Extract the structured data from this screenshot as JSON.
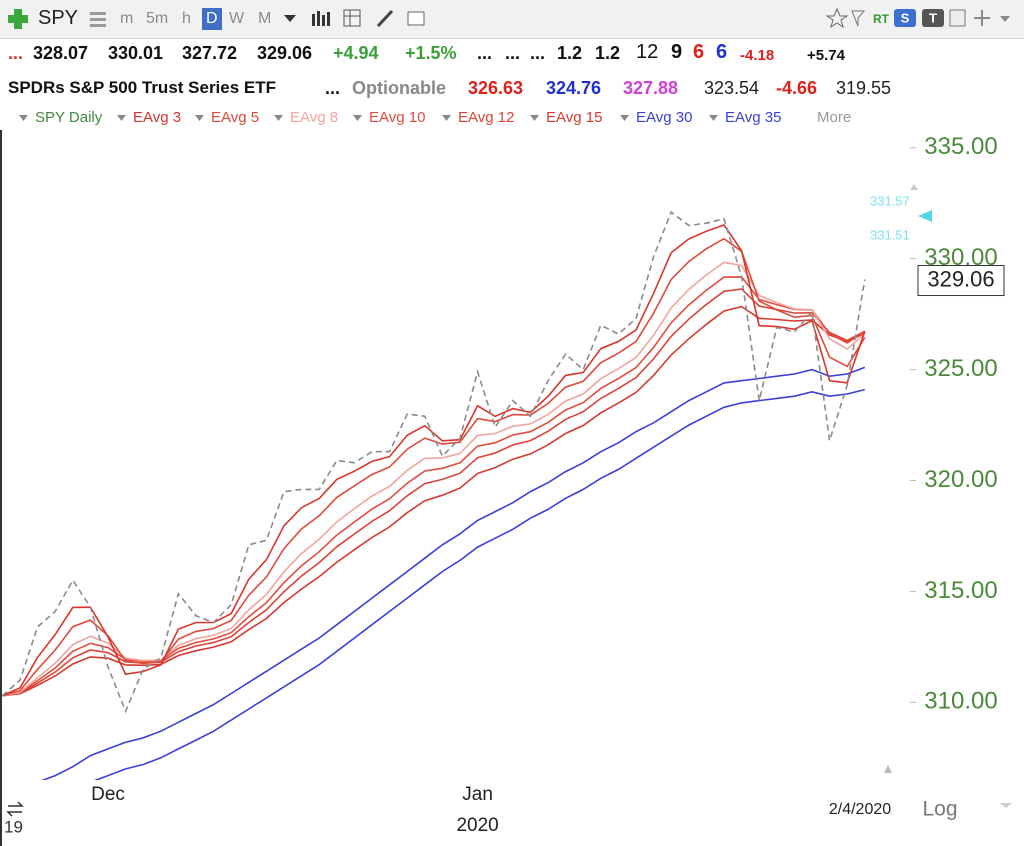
{
  "toolbar": {
    "symbol": "SPY",
    "intervals": [
      "m",
      "5m",
      "h",
      "D",
      "W",
      "M"
    ],
    "realtime": "RT"
  },
  "quote": {
    "row1": [
      "...",
      "328.07",
      "330.01",
      "327.72",
      "329.06",
      "+4.94",
      "+1.5%",
      "...",
      "...",
      "...",
      "1.2",
      "1.2",
      "12",
      "9",
      "6",
      "6",
      "-4.18",
      "+5.74"
    ],
    "row2": [
      "SPDRs S&P 500 Trust Series ETF",
      "...",
      "Optionable",
      "326.63",
      "324.76",
      "327.88",
      "323.54",
      "-4.66",
      "319.55"
    ]
  },
  "chart_data": {
    "type": "line",
    "categories": [
      null,
      null,
      null,
      null,
      null,
      null,
      "Dec",
      null,
      null,
      null,
      null,
      null,
      null,
      null,
      null,
      null,
      null,
      null,
      null,
      null,
      null,
      null,
      null,
      null,
      null,
      null,
      null,
      "Jan",
      null,
      null,
      null,
      null,
      null,
      null,
      null,
      null,
      null,
      null,
      null,
      null,
      null,
      null,
      null,
      null,
      null,
      null,
      null,
      null,
      null,
      null
    ],
    "year_label": "2020",
    "prev_year_label": "19",
    "date_label": "2/4/2020",
    "scale_label": "Log",
    "more_label": "More",
    "annotations": [
      "331.57",
      "331.51"
    ],
    "ylim": [
      306.5,
      335.8
    ],
    "yticks": [
      {
        "value": 310,
        "label": "310.00"
      },
      {
        "value": 315,
        "label": "315.00"
      },
      {
        "value": 320,
        "label": "320.00"
      },
      {
        "value": 325,
        "label": "325.00"
      },
      {
        "value": 330,
        "label": "330.00"
      },
      {
        "value": 335,
        "label": "335.00"
      }
    ],
    "log_scale": false,
    "grid": false,
    "series": [
      {
        "name": "SPY Daily",
        "color": "#8a8a8a",
        "dashed": true,
        "values": [
          310.3,
          311.0,
          313.4,
          314.1,
          315.5,
          314.3,
          311.6,
          309.6,
          311.5,
          312.0,
          314.9,
          313.9,
          313.6,
          314.4,
          317.1,
          317.3,
          319.5,
          319.6,
          319.6,
          320.9,
          320.8,
          321.3,
          321.3,
          323.0,
          322.9,
          321.1,
          321.9,
          324.9,
          322.4,
          323.6,
          322.9,
          324.5,
          325.7,
          325.0,
          327.0,
          326.6,
          327.3,
          330.1,
          332.1,
          331.5,
          331.6,
          331.8,
          329.2,
          323.6,
          326.9,
          326.7,
          327.6,
          321.8,
          324.3,
          329.06
        ]
      },
      {
        "name": "EAvg 3",
        "color": "#d9342b",
        "values": [
          310.3,
          310.65,
          312.03,
          313.06,
          314.28,
          314.29,
          312.95,
          311.27,
          311.39,
          311.69,
          313.3,
          313.6,
          313.6,
          314.0,
          315.55,
          316.43,
          317.96,
          318.78,
          319.19,
          320.05,
          320.42,
          320.86,
          321.08,
          322.04,
          322.47,
          321.79,
          321.84,
          323.37,
          322.89,
          323.24,
          323.07,
          323.79,
          324.74,
          324.87,
          325.94,
          326.27,
          326.78,
          328.44,
          330.27,
          330.89,
          331.24,
          331.52,
          330.36,
          326.98,
          326.94,
          326.82,
          327.21,
          324.5,
          324.4,
          326.73
        ]
      },
      {
        "name": "EAvg 5",
        "color": "#e04a3a",
        "values": [
          310.3,
          310.53,
          311.49,
          312.36,
          313.41,
          313.71,
          313.01,
          311.87,
          311.75,
          311.83,
          312.85,
          313.2,
          313.33,
          313.69,
          314.83,
          315.65,
          316.93,
          317.82,
          318.41,
          319.24,
          319.76,
          320.27,
          320.61,
          321.41,
          321.91,
          321.64,
          321.73,
          322.79,
          322.66,
          322.97,
          322.95,
          323.47,
          324.21,
          324.47,
          325.31,
          325.74,
          326.26,
          327.54,
          329.06,
          329.87,
          330.45,
          330.9,
          330.33,
          328.09,
          327.69,
          327.36,
          327.44,
          325.56,
          325.14,
          326.45
        ]
      },
      {
        "name": "EAvg 8",
        "color": "#f2a59e",
        "values": [
          310.3,
          310.46,
          311.11,
          311.77,
          312.6,
          312.98,
          312.67,
          311.99,
          311.88,
          311.91,
          312.57,
          312.87,
          313.03,
          313.33,
          314.17,
          314.86,
          315.89,
          316.71,
          317.35,
          318.14,
          318.73,
          319.3,
          319.74,
          320.46,
          321.0,
          321.02,
          321.22,
          322.04,
          322.12,
          322.45,
          322.55,
          322.98,
          323.58,
          323.9,
          324.59,
          325.04,
          325.54,
          326.55,
          327.78,
          328.61,
          329.27,
          329.83,
          329.69,
          328.34,
          328.02,
          327.73,
          327.7,
          326.39,
          325.93,
          326.62
        ]
      },
      {
        "name": "EAvg 10",
        "color": "#e24b3e",
        "values": [
          310.3,
          310.43,
          310.98,
          311.55,
          312.3,
          312.66,
          312.47,
          311.93,
          311.85,
          311.88,
          312.43,
          312.7,
          312.86,
          313.14,
          313.86,
          314.49,
          315.4,
          316.16,
          316.79,
          317.54,
          318.13,
          318.71,
          319.18,
          319.88,
          320.43,
          320.55,
          320.8,
          321.55,
          321.7,
          322.05,
          322.2,
          322.62,
          323.18,
          323.51,
          324.15,
          324.6,
          325.09,
          326.0,
          327.11,
          327.91,
          328.58,
          329.17,
          329.18,
          328.16,
          327.93,
          327.71,
          327.69,
          326.62,
          326.2,
          326.72
        ]
      },
      {
        "name": "EAvg 12",
        "color": "#dc4337",
        "values": [
          310.3,
          310.41,
          310.87,
          311.37,
          312.01,
          312.36,
          312.24,
          311.83,
          311.78,
          311.81,
          312.29,
          312.54,
          312.7,
          312.96,
          313.6,
          314.17,
          314.99,
          315.7,
          316.3,
          317.01,
          317.59,
          318.16,
          318.64,
          319.31,
          319.86,
          320.05,
          320.33,
          321.03,
          321.24,
          321.6,
          321.8,
          322.22,
          322.76,
          323.1,
          323.7,
          324.15,
          324.64,
          325.48,
          326.5,
          327.27,
          327.94,
          328.53,
          328.63,
          327.86,
          327.71,
          327.55,
          327.56,
          326.67,
          326.31,
          326.73
        ]
      },
      {
        "name": "EAvg 15",
        "color": "#d6392d",
        "values": [
          310.3,
          310.39,
          310.77,
          311.19,
          311.73,
          312.05,
          311.99,
          311.69,
          311.67,
          311.71,
          312.11,
          312.33,
          312.49,
          312.73,
          313.28,
          313.78,
          314.5,
          315.11,
          315.67,
          316.32,
          316.88,
          317.43,
          317.91,
          318.55,
          319.09,
          319.34,
          319.66,
          320.32,
          320.58,
          320.96,
          321.2,
          321.61,
          322.12,
          322.48,
          323.05,
          323.49,
          323.97,
          324.74,
          325.66,
          326.39,
          327.04,
          327.64,
          327.84,
          327.31,
          327.26,
          327.19,
          327.24,
          326.56,
          326.28,
          326.63
        ]
      },
      {
        "name": "EAvg 30",
        "color": "#3b40d6",
        "values": [
          305.8,
          306.1,
          306.4,
          306.7,
          307.1,
          307.6,
          307.9,
          308.2,
          308.4,
          308.7,
          309.1,
          309.5,
          309.9,
          310.4,
          310.9,
          311.4,
          311.9,
          312.4,
          312.9,
          313.5,
          314.1,
          314.7,
          315.3,
          315.9,
          316.5,
          317.1,
          317.6,
          318.2,
          318.6,
          319.0,
          319.5,
          319.9,
          320.4,
          320.8,
          321.3,
          321.7,
          322.2,
          322.6,
          323.1,
          323.6,
          324.0,
          324.4,
          324.5,
          324.6,
          324.7,
          324.8,
          325.0,
          324.7,
          324.8,
          325.1
        ]
      },
      {
        "name": "EAvg 35",
        "color": "#3b40d6",
        "values": [
          304.6,
          304.9,
          305.2,
          305.5,
          305.9,
          306.4,
          306.7,
          307.0,
          307.2,
          307.5,
          307.9,
          308.3,
          308.7,
          309.2,
          309.7,
          310.2,
          310.7,
          311.2,
          311.7,
          312.3,
          312.9,
          313.5,
          314.1,
          314.7,
          315.3,
          315.9,
          316.4,
          317.0,
          317.4,
          317.8,
          318.3,
          318.7,
          319.2,
          319.6,
          320.1,
          320.5,
          321.0,
          321.5,
          322.0,
          322.5,
          322.9,
          323.3,
          323.5,
          323.6,
          323.7,
          323.8,
          324.0,
          323.8,
          323.9,
          324.1
        ]
      }
    ]
  }
}
